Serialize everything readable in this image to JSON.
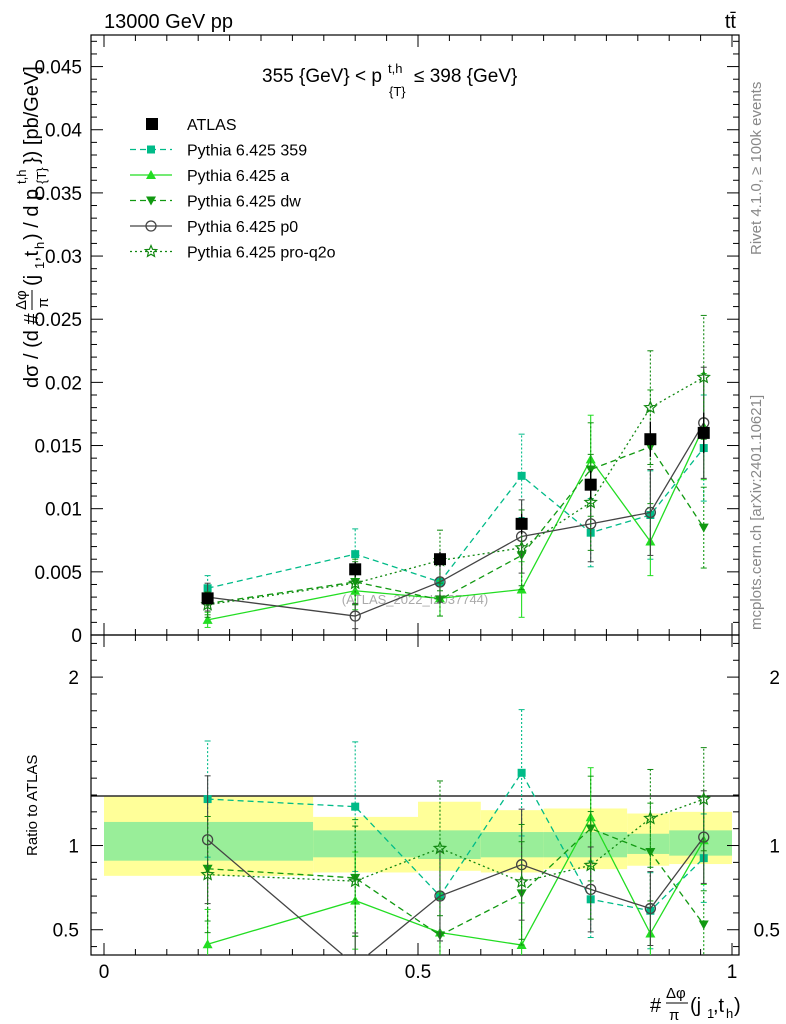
{
  "header": {
    "energy": "13000 GeV pp",
    "process": "tt̄"
  },
  "side_labels": {
    "rivet": "Rivet 4.1.0, ≥ 100k events",
    "mcplots": "mcplots.cern.ch [arXiv:2401.10621]"
  },
  "chart_data": {
    "type": "line",
    "title": "355 {GeV} < p_{T}^{t,h} ≤ 398 {GeV}",
    "watermark": "(ATLAS_2022_I2037744)",
    "ylabel": "dσ / (d #Δφ/π(j1,th) / d p_{T}^{t,h}) [pb/GeV]",
    "xlabel": "#Δφ/π(j1,th)",
    "xlim": [
      0,
      1
    ],
    "ylim": [
      0,
      0.0475
    ],
    "x_ticks": [
      "0",
      "0.5",
      "1"
    ],
    "y_ticks": [
      "0",
      "0.005",
      "0.01",
      "0.015",
      "0.02",
      "0.025",
      "0.03",
      "0.035",
      "0.04",
      "0.045"
    ],
    "ratio": {
      "ylabel": "Ratio to ATLAS",
      "ylim": [
        0.35,
        2.25
      ],
      "y_ticks": [
        "0.5",
        "1",
        "2"
      ],
      "bins": [
        [
          0,
          0.333
        ],
        [
          0.333,
          0.5
        ],
        [
          0.5,
          0.6
        ],
        [
          0.6,
          0.7
        ],
        [
          0.7,
          0.833
        ],
        [
          0.833,
          0.9
        ],
        [
          0.9,
          1.0
        ]
      ],
      "band_inner": [
        [
          0.91,
          1.14
        ],
        [
          0.93,
          1.09
        ],
        [
          0.92,
          1.09
        ],
        [
          0.93,
          1.08
        ],
        [
          0.93,
          1.08
        ],
        [
          0.95,
          1.07
        ],
        [
          0.94,
          1.09
        ]
      ],
      "band_outer": [
        [
          0.82,
          1.29
        ],
        [
          0.84,
          1.17
        ],
        [
          0.85,
          1.26
        ],
        [
          0.84,
          1.21
        ],
        [
          0.86,
          1.22
        ],
        [
          0.88,
          1.19
        ],
        [
          0.89,
          1.2
        ]
      ]
    },
    "x": [
      0.165,
      0.4,
      0.535,
      0.665,
      0.775,
      0.87,
      0.955
    ],
    "data": {
      "name": "ATLAS",
      "y": [
        0.0029,
        0.0052,
        0.006,
        0.0088,
        0.0119,
        0.0155,
        0.016
      ],
      "err": [
        0.0004,
        0.0006,
        0.0006,
        0.0008,
        0.0011,
        0.0014,
        0.0016
      ]
    },
    "series": [
      {
        "name": "Pythia 6.425 359",
        "color": "#00bb88",
        "dash": "6,4",
        "marker": "square",
        "y": [
          0.0037,
          0.0064,
          0.0042,
          0.0126,
          0.0081,
          0.0095,
          0.0148
        ],
        "err": [
          0.001,
          0.002,
          0.0016,
          0.0033,
          0.0027,
          0.0035,
          0.0042
        ]
      },
      {
        "name": "Pythia 6.425 a",
        "color": "#22dd22",
        "dash": "",
        "marker": "triangle-up",
        "y": [
          0.0012,
          0.0035,
          0.0029,
          0.0036,
          0.0139,
          0.0074,
          0.0165
        ],
        "err": [
          0.0006,
          0.0015,
          0.0014,
          0.0022,
          0.0035,
          0.0027,
          0.0042
        ]
      },
      {
        "name": "Pythia 6.425 dw",
        "color": "#119911",
        "dash": "6,4",
        "marker": "triangle-down",
        "y": [
          0.0025,
          0.0042,
          0.0028,
          0.0063,
          0.0131,
          0.0149,
          0.0085
        ],
        "err": [
          0.0009,
          0.0018,
          0.0013,
          0.0027,
          0.0037,
          0.0045,
          0.0032
        ]
      },
      {
        "name": "Pythia 6.425 p0",
        "color": "#444444",
        "dash": "",
        "marker": "circle-open",
        "y": [
          0.003,
          0.0015,
          0.0042,
          0.0078,
          0.0088,
          0.0097,
          0.0168
        ],
        "err": [
          0.0011,
          0.001,
          0.0016,
          0.0029,
          0.003,
          0.0034,
          0.0044
        ]
      },
      {
        "name": "Pythia 6.425 pro-q2o",
        "color": "#118811",
        "dash": "2,3",
        "marker": "star",
        "y": [
          0.0024,
          0.0041,
          0.0059,
          0.0069,
          0.0105,
          0.018,
          0.0204
        ],
        "err": [
          0.001,
          0.0017,
          0.0024,
          0.003,
          0.0038,
          0.0045,
          0.0049
        ]
      }
    ]
  }
}
